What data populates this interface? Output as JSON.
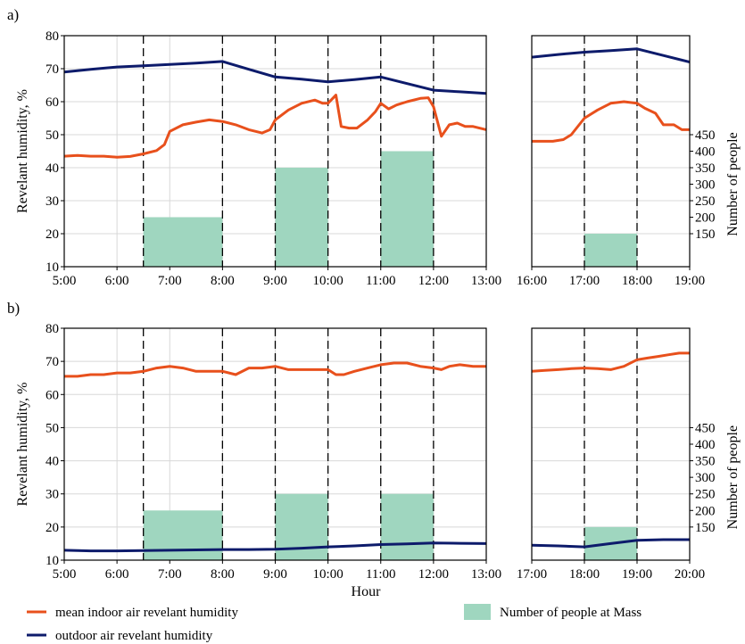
{
  "colors": {
    "indoor": "#e8501c",
    "outdoor": "#0d1b6b",
    "people": "#9fd6bf",
    "grid": "#d8d8d8",
    "frame": "#000000"
  },
  "xlabel": "Hour",
  "legend": {
    "indoor": "mean indoor air revelant humidity",
    "outdoor": "outdoor air revelant humidity",
    "people": "Number of people at Mass"
  },
  "chart_data": [
    {
      "id": "a-left",
      "panel_label": "a)",
      "type": "line",
      "xlim": [
        5,
        13
      ],
      "xticks": [
        5,
        6,
        7,
        8,
        9,
        10,
        11,
        12,
        13
      ],
      "xticklabels": [
        "5:00",
        "6:00",
        "7:00",
        "8:00",
        "9:00",
        "10:00",
        "11:00",
        "12:00",
        "13:00"
      ],
      "ylabel": "Revelant humidity,  %",
      "ylim": [
        10,
        80
      ],
      "yticks": [
        10,
        20,
        30,
        40,
        50,
        60,
        70,
        80
      ],
      "y2lim": [
        50,
        750
      ],
      "dashed_lines": [
        6.5,
        8,
        9,
        10,
        11,
        12
      ],
      "grid": true,
      "series": [
        {
          "name": "outdoor air revelant humidity",
          "key": "outdoor",
          "x": [
            5,
            5.5,
            6,
            6.5,
            7,
            7.5,
            8,
            8.5,
            9,
            9.5,
            10,
            10.5,
            11,
            11.5,
            12,
            12.5,
            13
          ],
          "y": [
            69,
            69.8,
            70.5,
            70.9,
            71.3,
            71.7,
            72.2,
            69.8,
            67.5,
            66.8,
            66,
            66.7,
            67.5,
            65.5,
            63.5,
            63,
            62.5
          ]
        },
        {
          "name": "mean indoor air revelant humidity",
          "key": "indoor",
          "x": [
            5,
            5.25,
            5.5,
            5.75,
            6,
            6.25,
            6.5,
            6.75,
            6.9,
            7,
            7.25,
            7.5,
            7.75,
            8,
            8.25,
            8.5,
            8.75,
            8.9,
            9,
            9.25,
            9.5,
            9.75,
            9.9,
            10,
            10.15,
            10.25,
            10.4,
            10.55,
            10.75,
            10.9,
            11,
            11.15,
            11.3,
            11.5,
            11.75,
            11.9,
            12,
            12.15,
            12.3,
            12.45,
            12.6,
            12.75,
            13
          ],
          "y": [
            43.5,
            43.7,
            43.5,
            43.5,
            43.2,
            43.4,
            44.2,
            45.2,
            47,
            51,
            53,
            53.8,
            54.5,
            54,
            53,
            51.5,
            50.5,
            51.5,
            54.5,
            57.5,
            59.5,
            60.5,
            59.5,
            59.5,
            62,
            52.5,
            52,
            52,
            54.5,
            57,
            59.5,
            57.8,
            59,
            60,
            61,
            61.2,
            58.5,
            49.5,
            53,
            53.5,
            52.5,
            52.5,
            51.5
          ]
        }
      ],
      "bars": {
        "name": "Number of people at Mass",
        "key": "people",
        "items": [
          {
            "x0": 6.5,
            "x1": 8,
            "value": 200
          },
          {
            "x0": 9,
            "x1": 10,
            "value": 350
          },
          {
            "x0": 11,
            "x1": 12,
            "value": 400
          }
        ]
      }
    },
    {
      "id": "a-right",
      "type": "line",
      "xlim": [
        16,
        19
      ],
      "xticks": [
        16,
        17,
        18,
        19
      ],
      "xticklabels": [
        "16:00",
        "17:00",
        "18:00",
        "19:00"
      ],
      "ylim": [
        10,
        80
      ],
      "y2label": "Number of people",
      "y2lim": [
        50,
        750
      ],
      "y2ticks": [
        150,
        200,
        250,
        300,
        350,
        400,
        450
      ],
      "dashed_lines": [
        17,
        18
      ],
      "grid": true,
      "series": [
        {
          "name": "outdoor air revelant humidity",
          "key": "outdoor",
          "x": [
            16,
            16.5,
            17,
            17.5,
            18,
            18.5,
            19
          ],
          "y": [
            73.5,
            74.3,
            75,
            75.5,
            76,
            74,
            72
          ]
        },
        {
          "name": "mean indoor air revelant humidity",
          "key": "indoor",
          "x": [
            16,
            16.2,
            16.4,
            16.6,
            16.75,
            17,
            17.25,
            17.5,
            17.75,
            18,
            18.15,
            18.35,
            18.5,
            18.7,
            18.85,
            19
          ],
          "y": [
            48,
            48,
            48,
            48.5,
            50,
            55,
            57.5,
            59.5,
            60,
            59.5,
            58,
            56.5,
            53,
            53,
            51.5,
            51.5
          ]
        }
      ],
      "bars": {
        "name": "Number of people at Mass",
        "key": "people",
        "items": [
          {
            "x0": 17,
            "x1": 18,
            "value": 150
          }
        ]
      }
    },
    {
      "id": "b-left",
      "panel_label": "b)",
      "type": "line",
      "xlim": [
        5,
        13
      ],
      "xticks": [
        5,
        6,
        7,
        8,
        9,
        10,
        11,
        12,
        13
      ],
      "xticklabels": [
        "5:00",
        "6:00",
        "7:00",
        "8:00",
        "9:00",
        "10:00",
        "11:00",
        "12:00",
        "13:00"
      ],
      "ylabel": "Revelant humidity,  %",
      "ylim": [
        10,
        80
      ],
      "yticks": [
        10,
        20,
        30,
        40,
        50,
        60,
        70,
        80
      ],
      "y2lim": [
        50,
        750
      ],
      "dashed_lines": [
        6.5,
        8,
        9,
        10,
        11,
        12
      ],
      "grid": true,
      "series": [
        {
          "name": "outdoor air revelant humidity",
          "key": "outdoor",
          "x": [
            5,
            5.5,
            6,
            6.5,
            7,
            7.5,
            8,
            8.5,
            9,
            9.5,
            10,
            10.5,
            11,
            11.5,
            12,
            12.5,
            13
          ],
          "y": [
            13,
            12.8,
            12.8,
            12.9,
            13,
            13.1,
            13.2,
            13.2,
            13.3,
            13.6,
            14,
            14.3,
            14.7,
            14.9,
            15.2,
            15.1,
            15
          ]
        },
        {
          "name": "mean indoor air revelant humidity",
          "key": "indoor",
          "x": [
            5,
            5.25,
            5.5,
            5.75,
            6,
            6.25,
            6.5,
            6.75,
            7,
            7.25,
            7.5,
            7.75,
            8,
            8.25,
            8.5,
            8.75,
            9,
            9.25,
            9.5,
            9.75,
            10,
            10.15,
            10.3,
            10.5,
            10.75,
            11,
            11.25,
            11.5,
            11.75,
            12,
            12.15,
            12.3,
            12.5,
            12.75,
            13
          ],
          "y": [
            65.5,
            65.5,
            66,
            66,
            66.5,
            66.5,
            67,
            68,
            68.5,
            68,
            67,
            67,
            67,
            66,
            68,
            68,
            68.5,
            67.5,
            67.5,
            67.5,
            67.5,
            66,
            66,
            67,
            68,
            69,
            69.5,
            69.5,
            68.5,
            68,
            67.5,
            68.5,
            69,
            68.5,
            68.5
          ]
        }
      ],
      "bars": {
        "name": "Number of people at Mass",
        "key": "people",
        "items": [
          {
            "x0": 6.5,
            "x1": 8,
            "value": 200
          },
          {
            "x0": 9,
            "x1": 10,
            "value": 250
          },
          {
            "x0": 11,
            "x1": 12,
            "value": 250
          }
        ]
      }
    },
    {
      "id": "b-right",
      "type": "line",
      "xlim": [
        17,
        20
      ],
      "xticks": [
        17,
        18,
        19,
        20
      ],
      "xticklabels": [
        "17:00",
        "18:00",
        "19:00",
        "20:00"
      ],
      "ylim": [
        10,
        80
      ],
      "y2label": "Number of people",
      "y2lim": [
        50,
        750
      ],
      "y2ticks": [
        150,
        200,
        250,
        300,
        350,
        400,
        450
      ],
      "dashed_lines": [
        18,
        19
      ],
      "grid": true,
      "series": [
        {
          "name": "outdoor air revelant humidity",
          "key": "outdoor",
          "x": [
            17,
            17.5,
            18,
            18.5,
            19,
            19.5,
            20
          ],
          "y": [
            14.5,
            14.3,
            14,
            15,
            16,
            16.2,
            16.2
          ]
        },
        {
          "name": "mean indoor air revelant humidity",
          "key": "indoor",
          "x": [
            17,
            17.25,
            17.5,
            17.75,
            18,
            18.25,
            18.5,
            18.75,
            19,
            19.2,
            19.4,
            19.6,
            19.8,
            20
          ],
          "y": [
            67,
            67.3,
            67.5,
            67.8,
            68,
            67.8,
            67.5,
            68.5,
            70.5,
            71,
            71.5,
            72,
            72.5,
            72.5
          ]
        }
      ],
      "bars": {
        "name": "Number of people at Mass",
        "key": "people",
        "items": [
          {
            "x0": 18,
            "x1": 19,
            "value": 150
          }
        ]
      }
    }
  ]
}
